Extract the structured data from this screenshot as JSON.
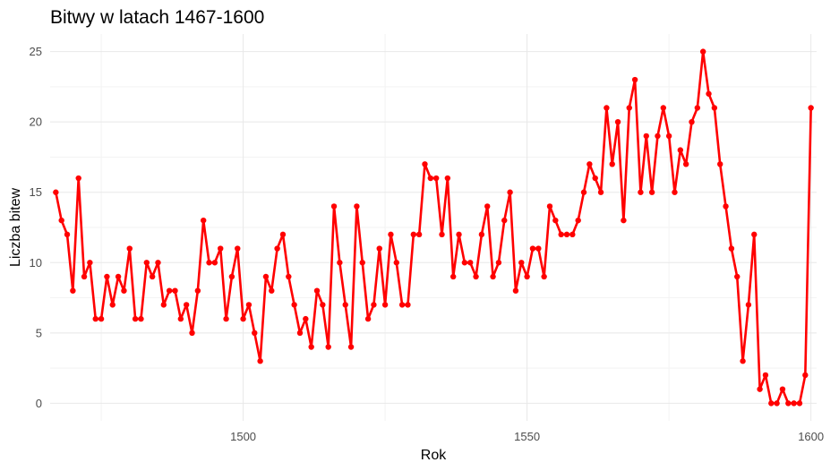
{
  "chart_data": {
    "type": "line",
    "title": "Bitwy w latach 1467-1600",
    "xlabel": "Rok",
    "ylabel": "Liczba bitew",
    "xlim": [
      1466,
      1601
    ],
    "ylim": [
      -1.25,
      26.25
    ],
    "x_ticks": [
      1500,
      1550,
      1600
    ],
    "y_ticks": [
      0,
      5,
      10,
      15,
      20,
      25
    ],
    "grid": true,
    "color": "#ff0000",
    "series": [
      {
        "x": [
          1467,
          1468,
          1469,
          1470,
          1471,
          1472,
          1473,
          1474,
          1475,
          1476,
          1477,
          1478,
          1479,
          1480,
          1481,
          1482,
          1483,
          1484,
          1485,
          1486,
          1487,
          1488,
          1489,
          1490,
          1491,
          1492,
          1493,
          1494,
          1495,
          1496,
          1497,
          1498,
          1499,
          1500,
          1501,
          1502,
          1503,
          1504,
          1505,
          1506,
          1507,
          1508,
          1509,
          1510,
          1511,
          1512,
          1513,
          1514,
          1515,
          1516,
          1517,
          1518,
          1519,
          1520,
          1521,
          1522,
          1523,
          1524,
          1525,
          1526,
          1527,
          1528,
          1529,
          1530,
          1531,
          1532,
          1533,
          1534,
          1535,
          1536,
          1537,
          1538,
          1539,
          1540,
          1541,
          1542,
          1543,
          1544,
          1545,
          1546,
          1547,
          1548,
          1549,
          1550,
          1551,
          1552,
          1553,
          1554,
          1555,
          1556,
          1557,
          1558,
          1559,
          1560,
          1561,
          1562,
          1563,
          1564,
          1565,
          1566,
          1567,
          1568,
          1569,
          1570,
          1571,
          1572,
          1573,
          1574,
          1575,
          1576,
          1577,
          1578,
          1579,
          1580,
          1581,
          1582,
          1583,
          1584,
          1585,
          1586,
          1587,
          1588,
          1589,
          1590,
          1591,
          1592,
          1593,
          1594,
          1595,
          1596,
          1597,
          1598,
          1599,
          1600
        ],
        "values": [
          15,
          13,
          12,
          8,
          16,
          9,
          10,
          6,
          6,
          9,
          7,
          9,
          8,
          11,
          6,
          6,
          10,
          9,
          10,
          7,
          8,
          8,
          6,
          7,
          5,
          8,
          13,
          10,
          10,
          11,
          6,
          9,
          11,
          6,
          7,
          5,
          3,
          9,
          8,
          11,
          12,
          9,
          7,
          5,
          6,
          4,
          8,
          7,
          4,
          14,
          10,
          7,
          4,
          14,
          10,
          6,
          7,
          11,
          7,
          12,
          10,
          7,
          7,
          12,
          12,
          17,
          16,
          16,
          12,
          16,
          9,
          12,
          10,
          10,
          9,
          12,
          14,
          9,
          10,
          13,
          15,
          8,
          10,
          9,
          11,
          11,
          9,
          14,
          13,
          12,
          12,
          12,
          13,
          15,
          17,
          16,
          15,
          21,
          17,
          20,
          13,
          21,
          23,
          15,
          19,
          15,
          19,
          21,
          19,
          15,
          18,
          17,
          20,
          21,
          25,
          22,
          21,
          17,
          14,
          11,
          9,
          3,
          7,
          12,
          1,
          2,
          0,
          0,
          1,
          0,
          0,
          0,
          2,
          21
        ]
      }
    ]
  }
}
